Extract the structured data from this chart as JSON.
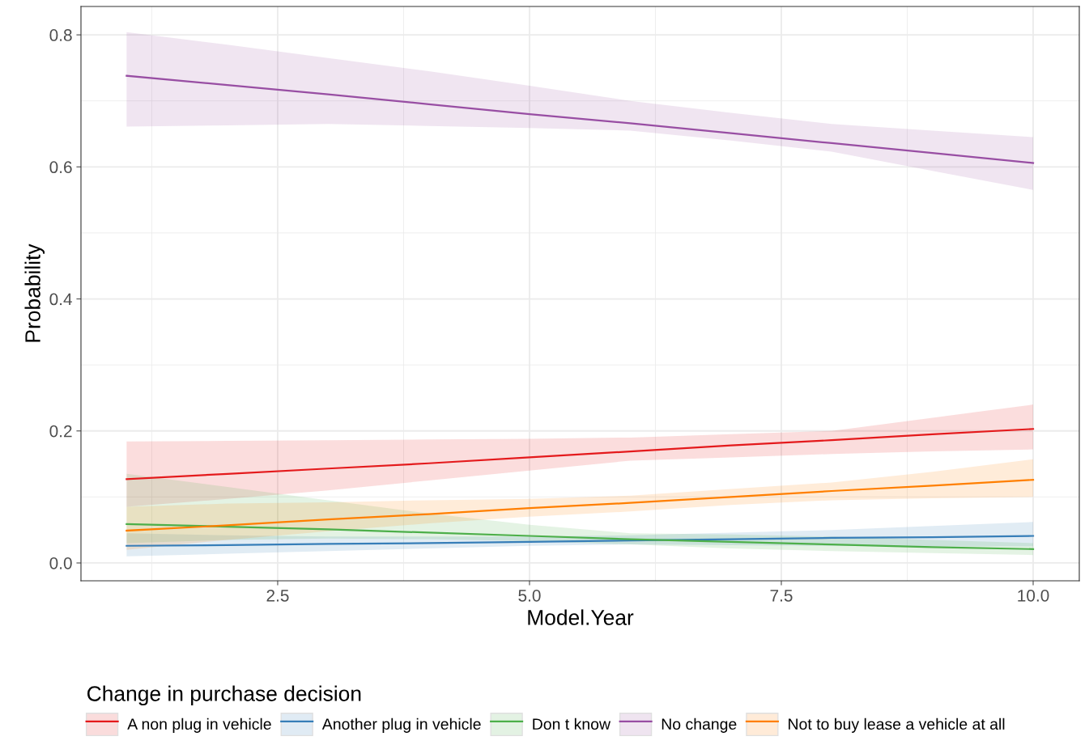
{
  "chart_data": {
    "type": "line",
    "xlabel": "Model.Year",
    "ylabel": "Probability",
    "legend_title": "Change in purchase decision",
    "x": [
      1,
      2,
      3,
      4,
      5,
      6,
      7,
      8,
      9,
      10
    ],
    "series": [
      {
        "name": "A non plug in vehicle",
        "color": "#e41a1c",
        "values": [
          0.127,
          0.135,
          0.143,
          0.151,
          0.16,
          0.169,
          0.178,
          0.186,
          0.195,
          0.203
        ],
        "lower": [
          0.085,
          0.097,
          0.11,
          0.125,
          0.14,
          0.155,
          0.16,
          0.165,
          0.169,
          0.172
        ],
        "upper": [
          0.184,
          0.185,
          0.186,
          0.187,
          0.188,
          0.19,
          0.195,
          0.2,
          0.22,
          0.24
        ]
      },
      {
        "name": "Another plug in vehicle",
        "color": "#377eb8",
        "values": [
          0.026,
          0.027,
          0.029,
          0.03,
          0.032,
          0.034,
          0.036,
          0.038,
          0.039,
          0.041
        ],
        "lower": [
          0.01,
          0.014,
          0.018,
          0.022,
          0.026,
          0.028,
          0.027,
          0.026,
          0.025,
          0.025
        ],
        "upper": [
          0.045,
          0.042,
          0.04,
          0.04,
          0.04,
          0.042,
          0.046,
          0.05,
          0.056,
          0.062
        ]
      },
      {
        "name": "Don t know",
        "color": "#4daf4a",
        "values": [
          0.059,
          0.055,
          0.051,
          0.046,
          0.041,
          0.036,
          0.032,
          0.028,
          0.024,
          0.021
        ],
        "lower": [
          0.03,
          0.035,
          0.037,
          0.036,
          0.033,
          0.028,
          0.022,
          0.018,
          0.015,
          0.012
        ],
        "upper": [
          0.135,
          0.115,
          0.095,
          0.075,
          0.058,
          0.045,
          0.043,
          0.04,
          0.035,
          0.03
        ]
      },
      {
        "name": "No change",
        "color": "#984ea3",
        "values": [
          0.738,
          0.724,
          0.71,
          0.695,
          0.68,
          0.666,
          0.651,
          0.636,
          0.621,
          0.606
        ],
        "lower": [
          0.661,
          0.663,
          0.665,
          0.662,
          0.659,
          0.655,
          0.64,
          0.623,
          0.594,
          0.565
        ],
        "upper": [
          0.804,
          0.785,
          0.765,
          0.745,
          0.723,
          0.7,
          0.682,
          0.665,
          0.655,
          0.645
        ]
      },
      {
        "name": "Not to buy lease a vehicle at all",
        "color": "#ff7f00",
        "values": [
          0.049,
          0.057,
          0.066,
          0.074,
          0.083,
          0.091,
          0.1,
          0.109,
          0.117,
          0.126
        ],
        "lower": [
          0.02,
          0.035,
          0.048,
          0.06,
          0.07,
          0.078,
          0.088,
          0.095,
          0.098,
          0.1
        ],
        "upper": [
          0.085,
          0.09,
          0.092,
          0.095,
          0.097,
          0.102,
          0.112,
          0.122,
          0.138,
          0.157
        ]
      }
    ],
    "xlim": [
      0.547,
      10.458
    ],
    "ylim": [
      -0.027,
      0.843
    ],
    "xticks": [
      {
        "value": 2.5,
        "label": "2.5"
      },
      {
        "value": 5,
        "label": "5.0"
      },
      {
        "value": 7.5,
        "label": "7.5"
      },
      {
        "value": 10,
        "label": "10.0"
      }
    ],
    "yticks": [
      {
        "value": 0,
        "label": "0.0"
      },
      {
        "value": 0.2,
        "label": "0.2"
      },
      {
        "value": 0.4,
        "label": "0.4"
      },
      {
        "value": 0.6,
        "label": "0.6"
      },
      {
        "value": 0.8,
        "label": "0.8"
      }
    ],
    "grid": true,
    "legend": "bottom"
  }
}
